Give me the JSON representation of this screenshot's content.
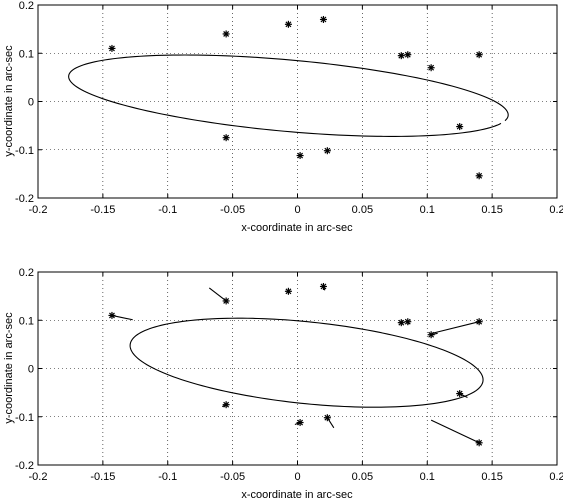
{
  "chart_data": [
    {
      "type": "scatter",
      "title": "",
      "xlabel": "x-coordinate in arc-sec",
      "ylabel": "y-coordinate in arc-sec",
      "xlim": [
        -0.2,
        0.2
      ],
      "ylim": [
        -0.2,
        0.2
      ],
      "xticks": [
        -0.2,
        -0.15,
        -0.1,
        -0.05,
        0,
        0.05,
        0.1,
        0.15,
        0.2
      ],
      "yticks": [
        -0.2,
        -0.1,
        0,
        0.1,
        0.2
      ],
      "xtick_labels": [
        "-0.2",
        "-0.15",
        "-0.1",
        "-0.05",
        "0",
        "0.05",
        "0.1",
        "0.15",
        "0.2"
      ],
      "ytick_labels": [
        "-0.2",
        "-0.1",
        "0",
        "0.1",
        "0.2"
      ],
      "grid": true,
      "marker": "asterisk",
      "points": [
        {
          "x": -0.143,
          "y": 0.11
        },
        {
          "x": -0.055,
          "y": 0.14
        },
        {
          "x": -0.007,
          "y": 0.16
        },
        {
          "x": 0.02,
          "y": 0.17
        },
        {
          "x": 0.08,
          "y": 0.095
        },
        {
          "x": 0.085,
          "y": 0.097
        },
        {
          "x": 0.103,
          "y": 0.07
        },
        {
          "x": 0.14,
          "y": 0.097
        },
        {
          "x": 0.125,
          "y": -0.052
        },
        {
          "x": 0.14,
          "y": -0.154
        },
        {
          "x": -0.055,
          "y": -0.075
        },
        {
          "x": 0.002,
          "y": -0.112
        },
        {
          "x": 0.023,
          "y": -0.102
        }
      ],
      "ellipse": {
        "center": [
          -0.007,
          0.012
        ],
        "semi_major": 0.175,
        "semi_minor": 0.072,
        "angle_deg": -16,
        "gap_from_deg": -8,
        "gap_to_deg": -3
      }
    },
    {
      "type": "scatter",
      "title": "",
      "xlabel": "x-coordinate in arc-sec",
      "ylabel": "y-coordinate in arc-sec",
      "xlim": [
        -0.2,
        0.2
      ],
      "ylim": [
        -0.2,
        0.2
      ],
      "xticks": [
        -0.2,
        -0.15,
        -0.1,
        -0.05,
        0,
        0.05,
        0.1,
        0.15,
        0.2
      ],
      "yticks": [
        -0.2,
        -0.1,
        0,
        0.1,
        0.2
      ],
      "xtick_labels": [
        "-0.2",
        "-0.15",
        "-0.1",
        "-0.05",
        "0",
        "0.05",
        "0.1",
        "0.15",
        "0.2"
      ],
      "ytick_labels": [
        "-0.2",
        "-0.1",
        "0",
        "0.1",
        "0.2"
      ],
      "grid": true,
      "marker": "asterisk",
      "points": [
        {
          "x": -0.143,
          "y": 0.11
        },
        {
          "x": -0.055,
          "y": 0.14
        },
        {
          "x": -0.007,
          "y": 0.16
        },
        {
          "x": 0.02,
          "y": 0.17
        },
        {
          "x": 0.08,
          "y": 0.095
        },
        {
          "x": 0.085,
          "y": 0.097
        },
        {
          "x": 0.103,
          "y": 0.07
        },
        {
          "x": 0.14,
          "y": 0.097
        },
        {
          "x": 0.125,
          "y": -0.052
        },
        {
          "x": 0.14,
          "y": -0.154
        },
        {
          "x": -0.055,
          "y": -0.075
        },
        {
          "x": 0.002,
          "y": -0.112
        },
        {
          "x": 0.023,
          "y": -0.102
        }
      ],
      "ellipse": {
        "center": [
          0.007,
          0.012
        ],
        "semi_major": 0.143,
        "semi_minor": 0.081,
        "angle_deg": -22,
        "gap_from_deg": 999,
        "gap_to_deg": 999
      },
      "residuals": [
        {
          "from": [
            -0.143,
            0.11
          ],
          "to": [
            -0.127,
            0.101
          ]
        },
        {
          "from": [
            -0.055,
            0.14
          ],
          "to": [
            -0.068,
            0.167
          ]
        },
        {
          "from": [
            -0.007,
            0.16
          ],
          "to": [
            -0.006,
            0.161
          ]
        },
        {
          "from": [
            0.02,
            0.17
          ],
          "to": [
            0.021,
            0.162
          ]
        },
        {
          "from": [
            0.08,
            0.095
          ],
          "to": [
            0.081,
            0.093
          ]
        },
        {
          "from": [
            0.085,
            0.097
          ],
          "to": [
            0.086,
            0.092
          ]
        },
        {
          "from": [
            0.103,
            0.07
          ],
          "to": [
            0.108,
            0.073
          ]
        },
        {
          "from": [
            0.14,
            0.097
          ],
          "to": [
            0.104,
            0.073
          ]
        },
        {
          "from": [
            0.125,
            -0.052
          ],
          "to": [
            0.131,
            -0.06
          ]
        },
        {
          "from": [
            0.14,
            -0.154
          ],
          "to": [
            0.103,
            -0.107
          ]
        },
        {
          "from": [
            -0.055,
            -0.075
          ],
          "to": [
            -0.058,
            -0.079
          ]
        },
        {
          "from": [
            0.002,
            -0.112
          ],
          "to": [
            -0.002,
            -0.116
          ]
        },
        {
          "from": [
            0.023,
            -0.102
          ],
          "to": [
            0.028,
            -0.123
          ]
        }
      ]
    }
  ]
}
